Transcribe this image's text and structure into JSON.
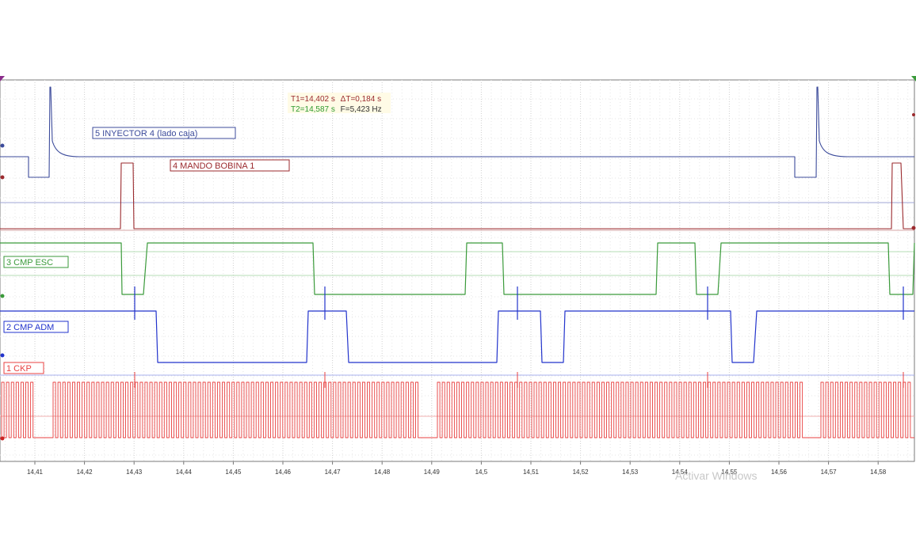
{
  "cursor_readout": {
    "line1_t": "T1=14,402 s",
    "line1_dt": "ΔT=0,184 s",
    "line2_t": "T2=14,587 s",
    "line2_f": "F=5,423 Hz"
  },
  "channels": [
    {
      "id": 5,
      "label": "5 INYECTOR 4 (lado caja)",
      "color": "#3c4b9b"
    },
    {
      "id": 4,
      "label": "4 MANDO BOBINA 1",
      "color": "#9b2a2e"
    },
    {
      "id": 3,
      "label": "3 CMP ESC",
      "color": "#3a9a3a"
    },
    {
      "id": 2,
      "label": "2 CMP ADM",
      "color": "#2233cc"
    },
    {
      "id": 1,
      "label": "1 CKP",
      "color": "#e84040"
    }
  ],
  "time_axis": {
    "ticks": [
      "14,41",
      "14,42",
      "14,43",
      "14,44",
      "14,45",
      "14,46",
      "14,47",
      "14,48",
      "14,49",
      "14,5",
      "14,51",
      "14,52",
      "14,53",
      "14,54",
      "14,55",
      "14,56",
      "14,57",
      "14,58"
    ]
  },
  "watermark": "Activar Windows",
  "colors": {
    "cursor1": "#8a2b8a",
    "cursor2": "#3a9a3a",
    "grid": "#d0d0d0",
    "readout_bg": "#fffbe6"
  }
}
